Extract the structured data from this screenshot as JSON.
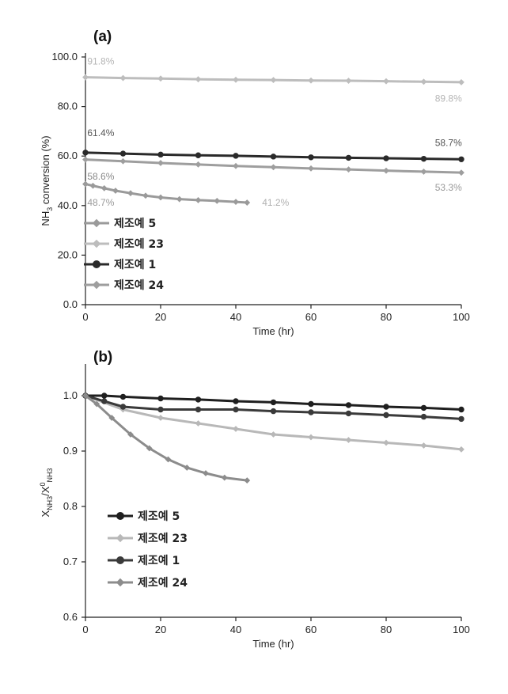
{
  "chart_data": [
    {
      "panel_label": "(a)",
      "type": "line",
      "xlabel": "Time (hr)",
      "ylabel_main": "NH",
      "ylabel_sub": "3",
      "ylabel_rest": " conversion (%)",
      "xlim": [
        0,
        100
      ],
      "ylim": [
        0,
        100
      ],
      "xticks": [
        "0",
        "20",
        "40",
        "60",
        "80",
        "100"
      ],
      "yticks": [
        "0.0",
        "20.0",
        "40.0",
        "60.0",
        "80.0",
        "100.0"
      ],
      "legend_position": "bottom-left",
      "series": [
        {
          "name": "제조예 5",
          "color": "#9a9a9a",
          "marker": "diamond",
          "x": [
            0,
            2,
            5,
            8,
            12,
            16,
            20,
            25,
            30,
            35,
            40,
            43
          ],
          "y": [
            48.7,
            48.0,
            47.0,
            46.0,
            45.0,
            44.0,
            43.3,
            42.6,
            42.2,
            41.9,
            41.5,
            41.2
          ]
        },
        {
          "name": "제조예 23",
          "color": "#bdbdbd",
          "marker": "diamond",
          "x": [
            0,
            10,
            20,
            30,
            40,
            50,
            60,
            70,
            80,
            90,
            100
          ],
          "y": [
            91.8,
            91.5,
            91.3,
            91.0,
            90.8,
            90.7,
            90.5,
            90.4,
            90.2,
            90.0,
            89.8
          ]
        },
        {
          "name": "제조예 1",
          "color": "#2a2a2a",
          "marker": "circle",
          "x": [
            0,
            10,
            20,
            30,
            40,
            50,
            60,
            70,
            80,
            90,
            100
          ],
          "y": [
            61.4,
            61.0,
            60.6,
            60.3,
            60.1,
            59.8,
            59.5,
            59.3,
            59.1,
            58.9,
            58.7
          ]
        },
        {
          "name": "제조예 24",
          "color": "#9e9e9e",
          "marker": "diamond",
          "x": [
            0,
            10,
            20,
            30,
            40,
            50,
            60,
            70,
            80,
            90,
            100
          ],
          "y": [
            58.6,
            57.9,
            57.2,
            56.6,
            56.0,
            55.5,
            55.0,
            54.6,
            54.1,
            53.7,
            53.3
          ]
        }
      ],
      "annotations": [
        {
          "text": "91.8%",
          "x": 0.5,
          "y": 97,
          "color": "#b5b5b5"
        },
        {
          "text": "89.8%",
          "x": 93,
          "y": 82,
          "color": "#b5b5b5"
        },
        {
          "text": "61.4%",
          "x": 0.5,
          "y": 68,
          "color": "#555555"
        },
        {
          "text": "58.7%",
          "x": 93,
          "y": 64,
          "color": "#555555"
        },
        {
          "text": "58.6%",
          "x": 0.5,
          "y": 50.5,
          "color": "#8a8a8a"
        },
        {
          "text": "53.3%",
          "x": 93,
          "y": 46,
          "color": "#9a9a9a"
        },
        {
          "text": "48.7%",
          "x": 0.5,
          "y": 40,
          "color": "#9a9a9a"
        },
        {
          "text": "41.2%",
          "x": 47,
          "y": 40,
          "color": "#b0b0b0"
        }
      ]
    },
    {
      "panel_label": "(b)",
      "type": "line",
      "xlabel": "Time (hr)",
      "ylabel_main": "X",
      "ylabel_sub": "NH3",
      "ylabel_slash": "/X",
      "ylabel_sup": "0",
      "ylabel_sub2": "NH3",
      "xlim": [
        0,
        100
      ],
      "ylim": [
        0.6,
        1.05
      ],
      "xticks": [
        "0",
        "20",
        "40",
        "60",
        "80",
        "100"
      ],
      "yticks": [
        "0.6",
        "0.7",
        "0.8",
        "0.9",
        "1.0"
      ],
      "legend_position": "bottom-left",
      "series": [
        {
          "name": "제조예 5",
          "color": "#1f1f1f",
          "marker": "circle",
          "x": [
            0,
            5,
            10,
            20,
            30,
            40,
            50,
            60,
            70,
            80,
            90,
            100
          ],
          "y": [
            1.0,
            1.0,
            0.998,
            0.995,
            0.993,
            0.99,
            0.988,
            0.985,
            0.983,
            0.98,
            0.978,
            0.975
          ]
        },
        {
          "name": "제조예 23",
          "color": "#b8b8b8",
          "marker": "diamond",
          "x": [
            0,
            10,
            20,
            30,
            40,
            50,
            60,
            70,
            80,
            90,
            100
          ],
          "y": [
            1.0,
            0.975,
            0.96,
            0.95,
            0.94,
            0.93,
            0.925,
            0.92,
            0.915,
            0.91,
            0.903
          ]
        },
        {
          "name": "제조예 1",
          "color": "#3a3a3a",
          "marker": "circle",
          "x": [
            0,
            5,
            10,
            20,
            30,
            40,
            50,
            60,
            70,
            80,
            90,
            100
          ],
          "y": [
            1.0,
            0.99,
            0.98,
            0.975,
            0.975,
            0.975,
            0.972,
            0.97,
            0.968,
            0.965,
            0.962,
            0.958
          ]
        },
        {
          "name": "제조예 24",
          "color": "#8c8c8c",
          "marker": "diamond",
          "x": [
            0,
            3,
            7,
            12,
            17,
            22,
            27,
            32,
            37,
            43
          ],
          "y": [
            1.0,
            0.985,
            0.96,
            0.93,
            0.905,
            0.885,
            0.87,
            0.86,
            0.852,
            0.847
          ]
        }
      ]
    }
  ]
}
